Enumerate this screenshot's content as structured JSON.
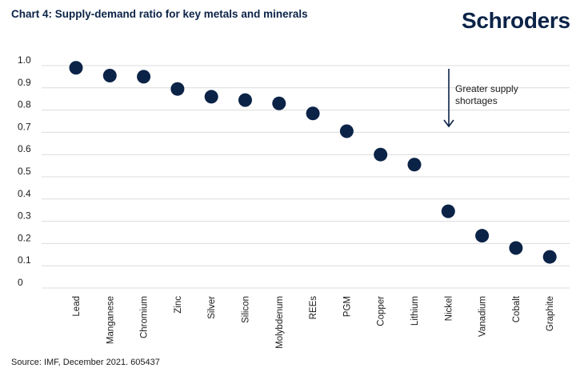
{
  "brand": "Schroders",
  "source": "Source: IMF, December 2021. 605437",
  "colors": {
    "marker": "#0b2347",
    "grid": "#dcdcdc",
    "arrow": "#0b2347"
  },
  "chart_data": {
    "type": "scatter",
    "title": "Chart 4: Supply-demand ratio for key metals and minerals",
    "xlabel": "",
    "ylabel": "",
    "ylim": [
      0,
      1.0
    ],
    "yticks": [
      "0",
      "0.1",
      "0.2",
      "0.3",
      "0.4",
      "0.5",
      "0.6",
      "0.7",
      "0.8",
      "0.9",
      "1.0"
    ],
    "grid": true,
    "categories": [
      "Lead",
      "Manganese",
      "Chromium",
      "Zinc",
      "Silver",
      "Silicon",
      "Molybdenum",
      "REEs",
      "PGM",
      "Copper",
      "Lithium",
      "Nickel",
      "Vanadium",
      "Cobalt",
      "Graphite"
    ],
    "values": [
      0.99,
      0.955,
      0.95,
      0.895,
      0.86,
      0.845,
      0.83,
      0.785,
      0.705,
      0.6,
      0.555,
      0.345,
      0.235,
      0.18,
      0.14
    ],
    "annotation": {
      "lines": [
        "Greater supply",
        "shortages"
      ],
      "arrow": "down"
    }
  }
}
